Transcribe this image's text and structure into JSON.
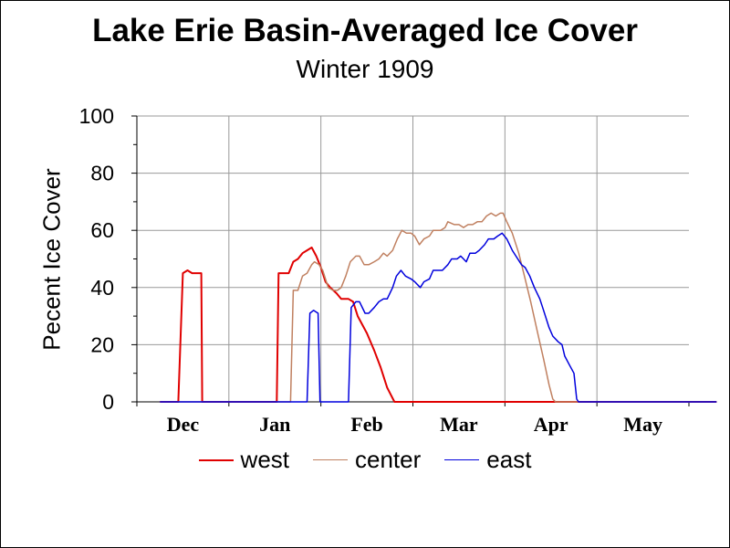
{
  "chart_data": {
    "type": "line",
    "title": "Lake Erie Basin-Averaged Ice Cover",
    "subtitle": "Winter 1909",
    "ylabel": "Pecent Ice Cover",
    "xlabel": "",
    "ylim": [
      0,
      100
    ],
    "yticks": [
      "0",
      "20",
      "40",
      "60",
      "80",
      "100"
    ],
    "xlim": [
      0,
      6
    ],
    "x_unit": "months since Dec 1",
    "month_labels": [
      "Dec",
      "Jan",
      "Feb",
      "Mar",
      "Apr",
      "May"
    ],
    "grid": true,
    "legend_position": "bottom",
    "series": [
      {
        "name": "west",
        "color": "#e00000",
        "stroke_width": 2,
        "points": [
          [
            -0.05,
            0
          ],
          [
            0.15,
            0
          ],
          [
            0.2,
            45
          ],
          [
            0.25,
            46
          ],
          [
            0.3,
            45
          ],
          [
            0.4,
            45
          ],
          [
            0.41,
            0
          ],
          [
            1.0,
            0
          ],
          [
            1.22,
            0
          ],
          [
            1.24,
            45
          ],
          [
            1.3,
            45
          ],
          [
            1.35,
            45
          ],
          [
            1.4,
            49
          ],
          [
            1.45,
            50
          ],
          [
            1.5,
            52
          ],
          [
            1.55,
            53
          ],
          [
            1.6,
            54
          ],
          [
            1.65,
            51
          ],
          [
            1.7,
            47
          ],
          [
            1.75,
            42
          ],
          [
            1.8,
            40
          ],
          [
            1.87,
            38
          ],
          [
            1.92,
            36
          ],
          [
            2.0,
            36
          ],
          [
            2.05,
            35
          ],
          [
            2.1,
            30
          ],
          [
            2.2,
            24
          ],
          [
            2.28,
            18
          ],
          [
            2.35,
            12
          ],
          [
            2.42,
            5
          ],
          [
            2.5,
            0
          ],
          [
            3.0,
            0
          ],
          [
            4.0,
            0
          ],
          [
            5.0,
            0
          ],
          [
            6.0,
            0
          ]
        ]
      },
      {
        "name": "center",
        "color": "#c08060",
        "stroke_width": 1.5,
        "points": [
          [
            -0.05,
            0
          ],
          [
            1.0,
            0
          ],
          [
            1.37,
            0
          ],
          [
            1.4,
            39
          ],
          [
            1.45,
            39
          ],
          [
            1.5,
            44
          ],
          [
            1.55,
            45
          ],
          [
            1.6,
            48
          ],
          [
            1.63,
            49
          ],
          [
            1.68,
            48
          ],
          [
            1.72,
            46
          ],
          [
            1.78,
            40
          ],
          [
            1.83,
            39
          ],
          [
            1.88,
            39
          ],
          [
            1.92,
            40
          ],
          [
            1.97,
            44
          ],
          [
            2.02,
            49
          ],
          [
            2.08,
            51
          ],
          [
            2.12,
            51
          ],
          [
            2.17,
            48
          ],
          [
            2.22,
            48
          ],
          [
            2.28,
            49
          ],
          [
            2.33,
            50
          ],
          [
            2.38,
            52
          ],
          [
            2.42,
            51
          ],
          [
            2.48,
            53
          ],
          [
            2.53,
            57
          ],
          [
            2.58,
            60
          ],
          [
            2.63,
            59
          ],
          [
            2.68,
            59
          ],
          [
            2.72,
            58
          ],
          [
            2.77,
            55
          ],
          [
            2.82,
            57
          ],
          [
            2.88,
            58
          ],
          [
            2.92,
            60
          ],
          [
            3.0,
            60
          ],
          [
            3.05,
            61
          ],
          [
            3.08,
            63
          ],
          [
            3.15,
            62
          ],
          [
            3.2,
            62
          ],
          [
            3.25,
            61
          ],
          [
            3.3,
            62
          ],
          [
            3.35,
            62
          ],
          [
            3.4,
            63
          ],
          [
            3.45,
            63
          ],
          [
            3.5,
            65
          ],
          [
            3.55,
            66
          ],
          [
            3.6,
            65
          ],
          [
            3.65,
            66
          ],
          [
            3.68,
            66
          ],
          [
            3.72,
            63
          ],
          [
            3.78,
            59
          ],
          [
            3.85,
            52
          ],
          [
            3.92,
            43
          ],
          [
            3.98,
            35
          ],
          [
            4.05,
            25
          ],
          [
            4.12,
            15
          ],
          [
            4.18,
            6
          ],
          [
            4.22,
            1
          ],
          [
            4.25,
            0
          ],
          [
            5.0,
            0
          ],
          [
            6.0,
            0
          ]
        ]
      },
      {
        "name": "east",
        "color": "#0000dd",
        "stroke_width": 1.5,
        "points": [
          [
            -0.05,
            0
          ],
          [
            1.0,
            0
          ],
          [
            1.55,
            0
          ],
          [
            1.58,
            31
          ],
          [
            1.62,
            32
          ],
          [
            1.67,
            31
          ],
          [
            1.69,
            0
          ],
          [
            2.0,
            0
          ],
          [
            2.03,
            33
          ],
          [
            2.08,
            35
          ],
          [
            2.12,
            35
          ],
          [
            2.18,
            31
          ],
          [
            2.22,
            31
          ],
          [
            2.28,
            33
          ],
          [
            2.33,
            35
          ],
          [
            2.38,
            36
          ],
          [
            2.42,
            36
          ],
          [
            2.48,
            40
          ],
          [
            2.52,
            44
          ],
          [
            2.57,
            46
          ],
          [
            2.62,
            44
          ],
          [
            2.68,
            43
          ],
          [
            2.72,
            42
          ],
          [
            2.78,
            40
          ],
          [
            2.82,
            42
          ],
          [
            2.88,
            43
          ],
          [
            2.92,
            46
          ],
          [
            3.02,
            46
          ],
          [
            3.08,
            48
          ],
          [
            3.12,
            50
          ],
          [
            3.18,
            50
          ],
          [
            3.22,
            51
          ],
          [
            3.28,
            49
          ],
          [
            3.32,
            52
          ],
          [
            3.38,
            52
          ],
          [
            3.42,
            53
          ],
          [
            3.48,
            55
          ],
          [
            3.52,
            57
          ],
          [
            3.58,
            57
          ],
          [
            3.62,
            58
          ],
          [
            3.67,
            59
          ],
          [
            3.72,
            57
          ],
          [
            3.78,
            53
          ],
          [
            3.82,
            51
          ],
          [
            3.88,
            48
          ],
          [
            3.92,
            47
          ],
          [
            3.97,
            44
          ],
          [
            4.02,
            40
          ],
          [
            4.08,
            36
          ],
          [
            4.12,
            32
          ],
          [
            4.18,
            26
          ],
          [
            4.22,
            23
          ],
          [
            4.28,
            21
          ],
          [
            4.32,
            20
          ],
          [
            4.35,
            16
          ],
          [
            4.4,
            13
          ],
          [
            4.45,
            10
          ],
          [
            4.48,
            1
          ],
          [
            4.5,
            0
          ],
          [
            5.0,
            0
          ],
          [
            6.0,
            0
          ]
        ]
      }
    ]
  }
}
